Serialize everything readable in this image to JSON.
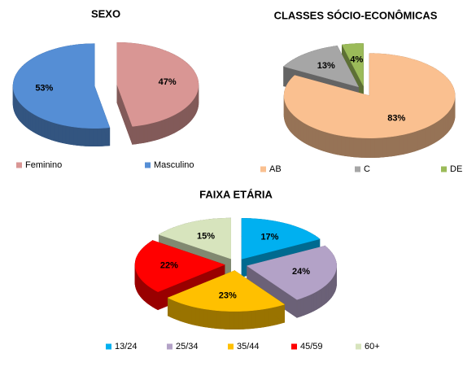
{
  "chart_data": [
    {
      "type": "pie",
      "title": "SEXO",
      "categories": [
        "Feminino",
        "Masculino"
      ],
      "values": [
        47,
        53
      ],
      "value_labels": [
        "47%",
        "53%"
      ],
      "colors": [
        "#d99694",
        "#558ed5"
      ]
    },
    {
      "type": "pie",
      "title": "CLASSES SÓCIO-ECONÔMICAS",
      "categories": [
        "AB",
        "C",
        "DE"
      ],
      "values": [
        83,
        13,
        4
      ],
      "value_labels": [
        "83%",
        "13%",
        "4%"
      ],
      "colors": [
        "#fac090",
        "#a6a6a6",
        "#9bbb59"
      ]
    },
    {
      "type": "pie",
      "title": "FAIXA ETÁRIA",
      "categories": [
        "13/24",
        "25/34",
        "35/44",
        "45/59",
        "60+"
      ],
      "values": [
        17,
        24,
        23,
        22,
        15
      ],
      "value_labels": [
        "17%",
        "24%",
        "23%",
        "22%",
        "15%"
      ],
      "colors": [
        "#00b0f0",
        "#b3a2c7",
        "#ffc000",
        "#ff0000",
        "#d7e4bd"
      ]
    }
  ]
}
